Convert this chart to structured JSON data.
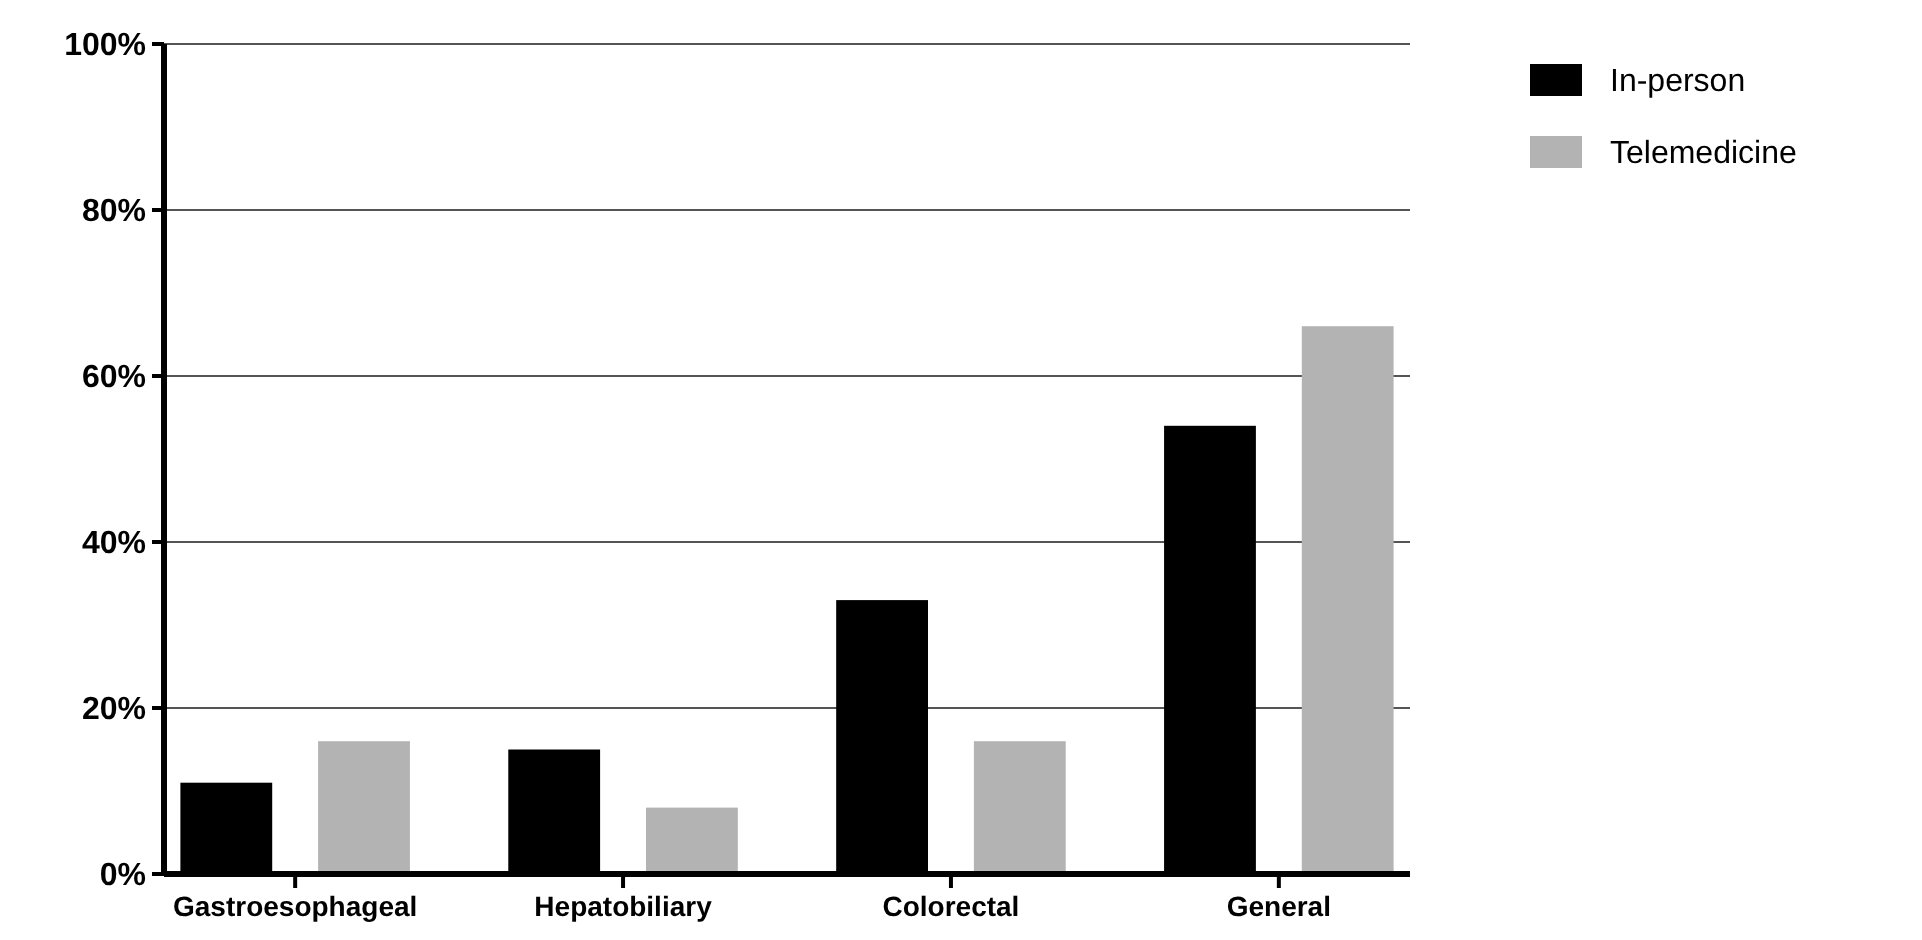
{
  "chart_data": {
    "type": "bar",
    "categories": [
      "Gastroesophageal",
      "Hepatobiliary",
      "Colorectal",
      "General"
    ],
    "series": [
      {
        "name": "In-person",
        "color": "#000000",
        "values": [
          11,
          15,
          33,
          54
        ]
      },
      {
        "name": "Telemedicine",
        "color": "#b3b3b3",
        "values": [
          16,
          8,
          16,
          66
        ]
      }
    ],
    "ylim": [
      0,
      100
    ],
    "yticks": [
      {
        "value": 0,
        "label": "0%"
      },
      {
        "value": 20,
        "label": "20%"
      },
      {
        "value": 40,
        "label": "40%"
      },
      {
        "value": 60,
        "label": "60%"
      },
      {
        "value": 80,
        "label": "80%"
      },
      {
        "value": 100,
        "label": "100%"
      }
    ],
    "grid": "y",
    "legend": "top right"
  }
}
